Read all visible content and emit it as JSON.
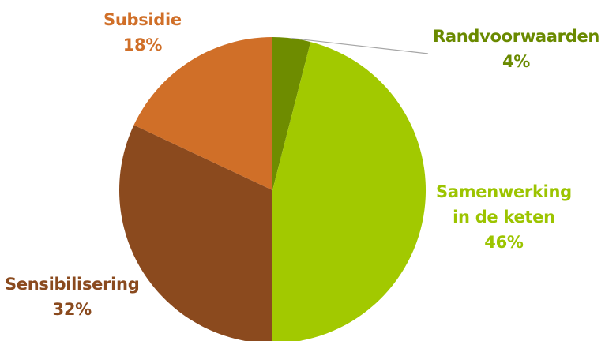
{
  "chart_data": {
    "type": "pie",
    "start_angle_deg": 0,
    "direction": "clockwise",
    "slices": [
      {
        "label_lines": [
          "Randvoorwaarden"
        ],
        "value": 4,
        "value_label": "4%",
        "color": "#6e8c00",
        "label_color": "#6a8a00"
      },
      {
        "label_lines": [
          "Samenwerking",
          "in de keten"
        ],
        "value": 46,
        "value_label": "46%",
        "color": "#a2c900",
        "label_color": "#9cc400"
      },
      {
        "label_lines": [
          "Sensibilisering"
        ],
        "value": 32,
        "value_label": "32%",
        "color": "#8b4a1e",
        "label_color": "#8a4a1e"
      },
      {
        "label_lines": [
          "Subsidie"
        ],
        "value": 18,
        "value_label": "18%",
        "color": "#d06f28",
        "label_color": "#d06f28"
      }
    ]
  }
}
